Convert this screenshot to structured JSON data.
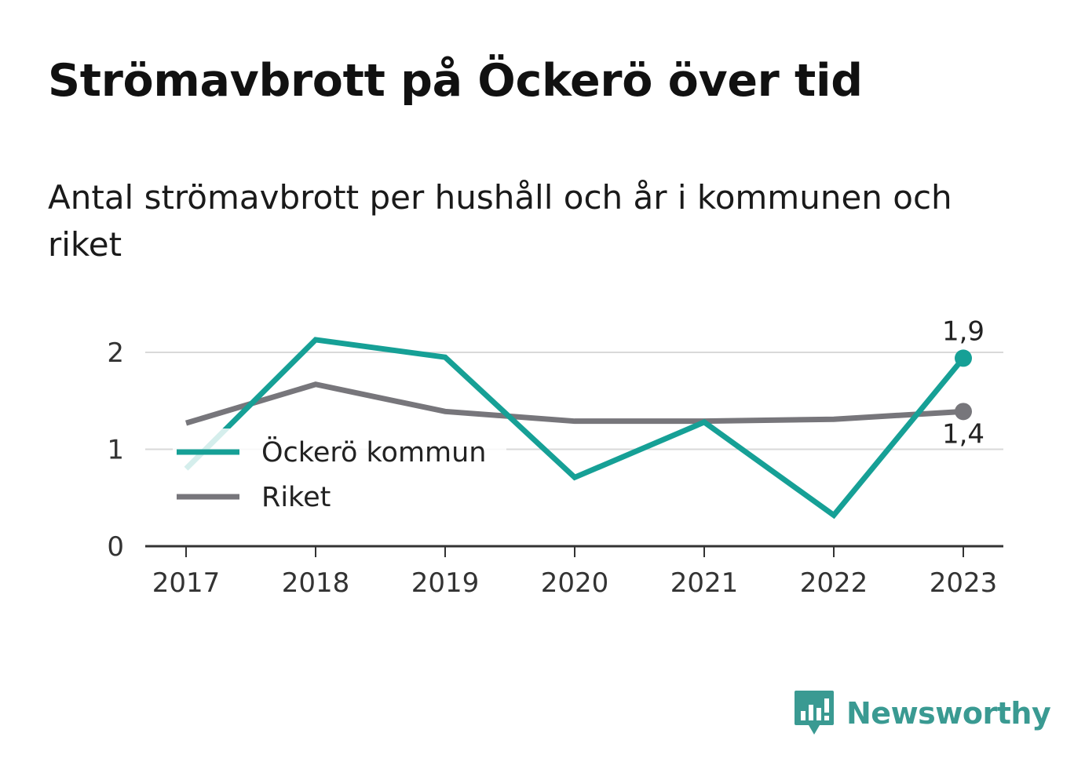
{
  "title": "Strömavbrott på Öckerö över tid",
  "subtitle": "Antal strömavbrott per hushåll och år i kommunen och riket",
  "brand": {
    "name": "Newsworthy",
    "logo_icon": "bar-chart-speech-bubble-icon"
  },
  "colors": {
    "kommun": "#16a096",
    "riket": "#77767b",
    "grid": "#d9d9d9",
    "axis": "#333333",
    "brand": "#3a9a92"
  },
  "chart_data": {
    "type": "line",
    "x": [
      "2017",
      "2018",
      "2019",
      "2020",
      "2021",
      "2022",
      "2023"
    ],
    "ylim": [
      0,
      2.2
    ],
    "yticks": [
      0,
      1,
      2
    ],
    "ytick_labels": [
      "0",
      "1",
      "2"
    ],
    "grid": true,
    "legend_position": "left-center",
    "series": [
      {
        "name": "Öckerö kommun",
        "values": [
          0.8,
          2.13,
          1.95,
          0.71,
          1.28,
          0.32,
          1.94
        ],
        "end_label": "1,9"
      },
      {
        "name": "Riket",
        "values": [
          1.27,
          1.67,
          1.39,
          1.29,
          1.29,
          1.31,
          1.39
        ],
        "end_label": "1,4"
      }
    ]
  }
}
